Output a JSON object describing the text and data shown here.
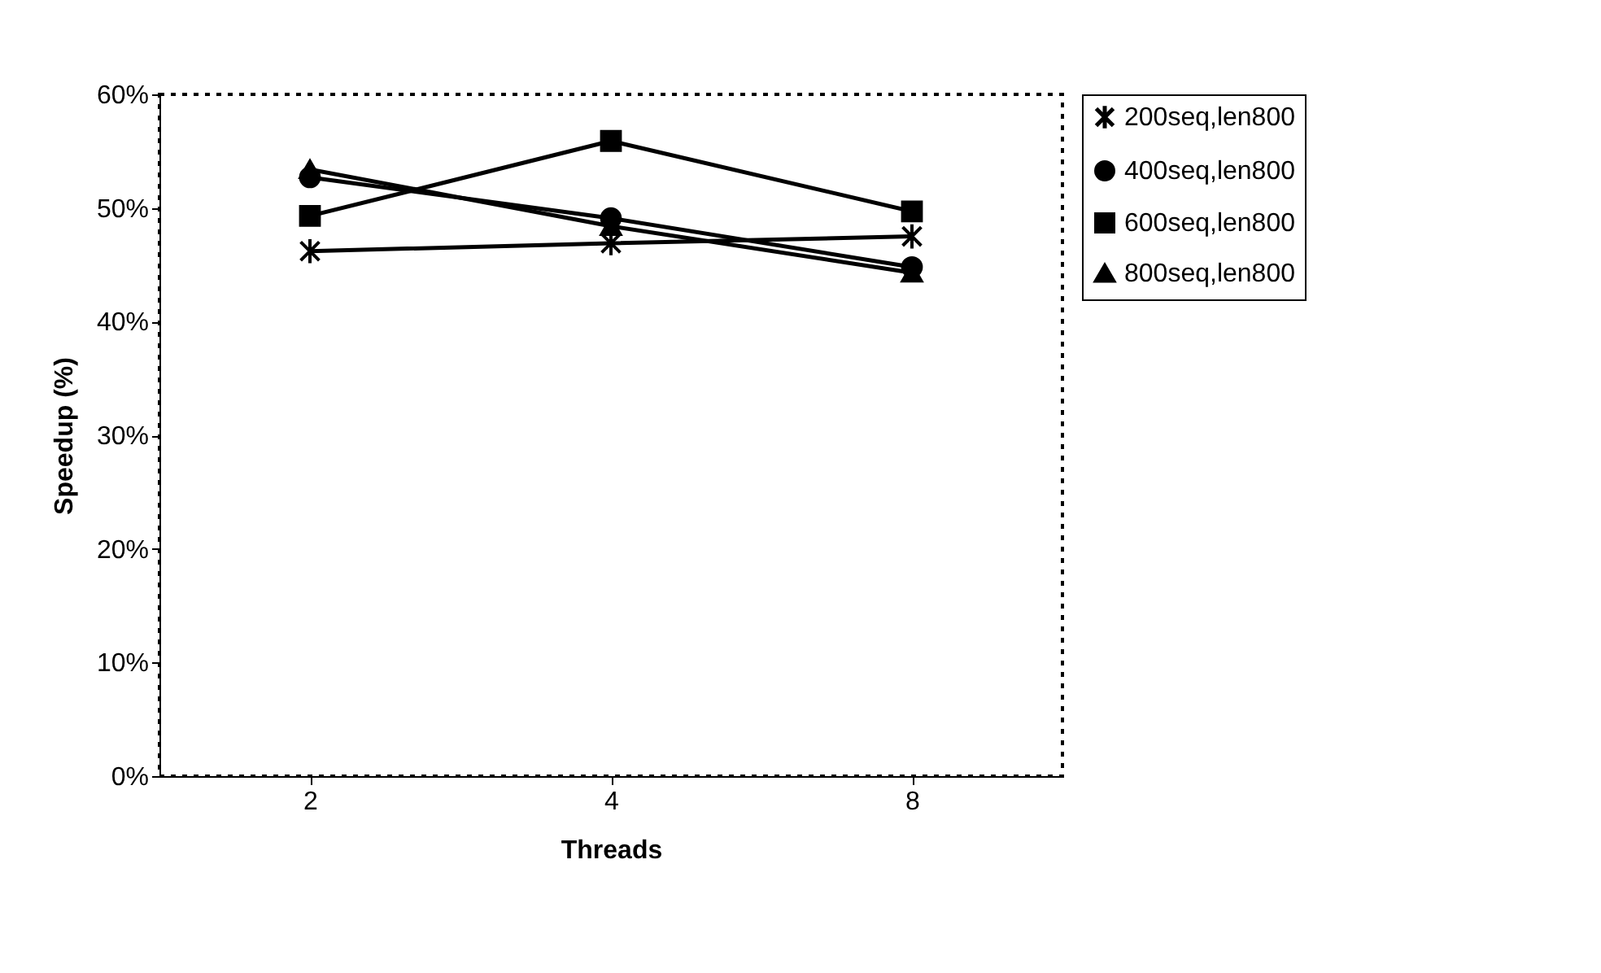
{
  "chart_data": {
    "type": "line",
    "xlabel": "Threads",
    "ylabel": "Speedup (%)",
    "categories": [
      "2",
      "4",
      "8"
    ],
    "ylim": [
      0,
      60
    ],
    "yticks": [
      {
        "value": 0,
        "label": "0%"
      },
      {
        "value": 10,
        "label": "10%"
      },
      {
        "value": 20,
        "label": "20%"
      },
      {
        "value": 30,
        "label": "30%"
      },
      {
        "value": 40,
        "label": "40%"
      },
      {
        "value": 50,
        "label": "50%"
      },
      {
        "value": 60,
        "label": "60%"
      }
    ],
    "legend": "right",
    "line_style": "solid",
    "series": [
      {
        "name": "200seq,len800",
        "color": "#000000",
        "marker": "cross",
        "values": [
          46.2,
          46.9,
          47.5
        ]
      },
      {
        "name": "400seq,len800",
        "color": "#000000",
        "marker": "circle",
        "values": [
          52.7,
          49.1,
          44.8
        ]
      },
      {
        "name": "600seq,len800",
        "color": "#000000",
        "marker": "square",
        "values": [
          49.3,
          55.9,
          49.7
        ]
      },
      {
        "name": "800seq,len800",
        "color": "#000000",
        "marker": "triangle",
        "values": [
          53.4,
          48.4,
          44.3
        ]
      }
    ]
  }
}
